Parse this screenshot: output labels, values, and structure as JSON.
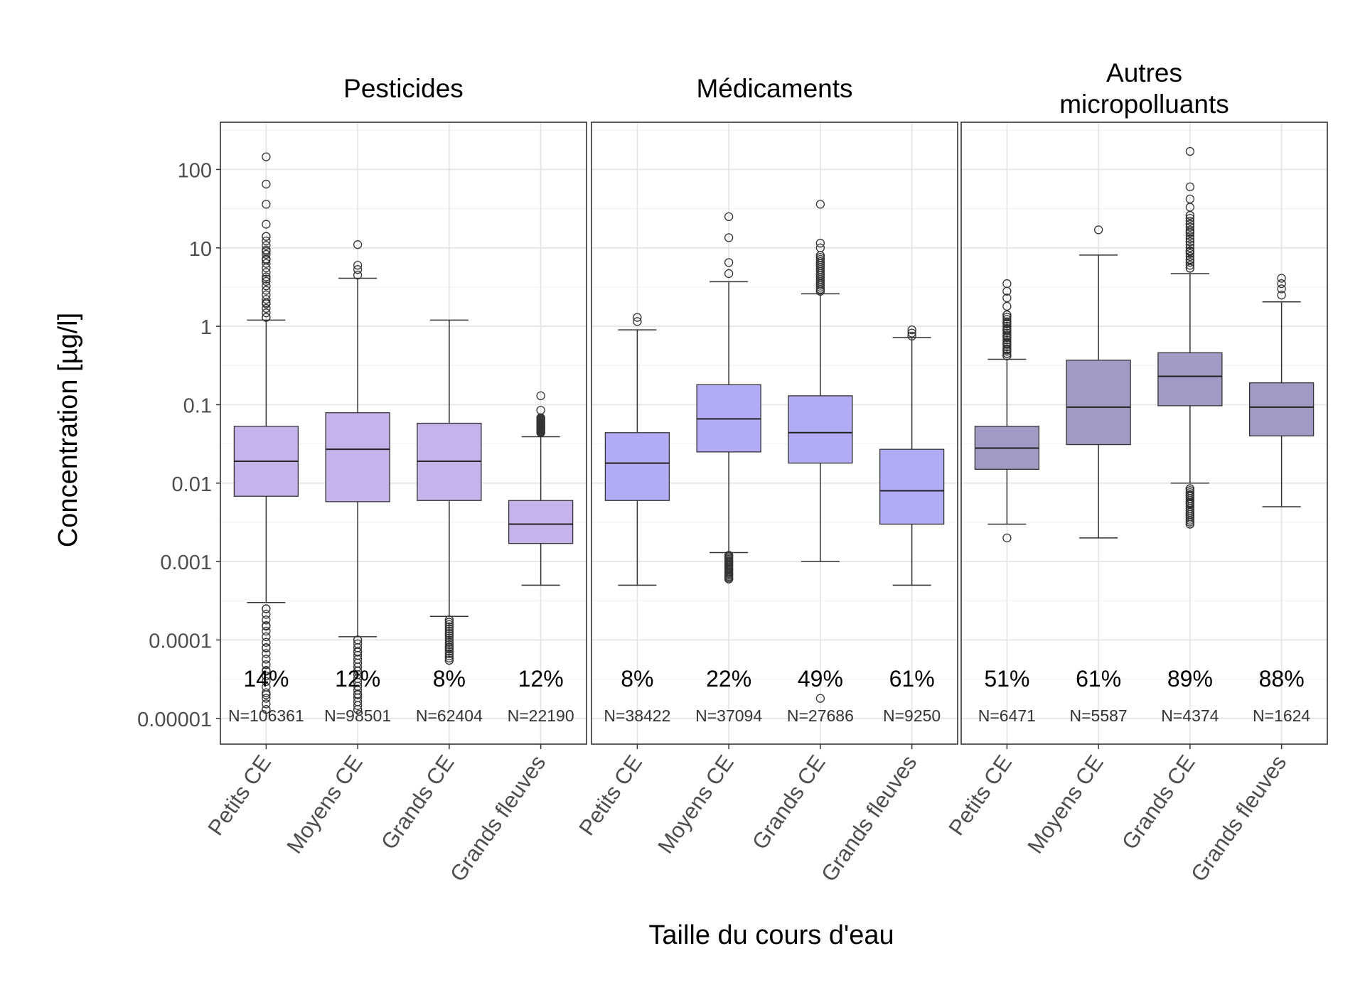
{
  "chart_data": {
    "type": "boxplot",
    "title": "",
    "xlabel": "Taille du cours d'eau",
    "ylabel": "Concentration [µg/l]",
    "yscale": "log10",
    "ylim": [
      5e-06,
      400
    ],
    "yticks": [
      1e-05,
      0.0001,
      0.001,
      0.01,
      0.1,
      1,
      10,
      100
    ],
    "ytick_labels": [
      "0.00001",
      "0.0001",
      "0.001",
      "0.01",
      "0.1",
      "1",
      "10",
      "100"
    ],
    "categories": [
      "Petits CE",
      "Moyens CE",
      "Grands CE",
      "Grands fleuves"
    ],
    "panels": [
      {
        "title_lines": [
          "Pesticides"
        ],
        "color": "#c5b3ec",
        "boxes": [
          {
            "category": "Petits CE",
            "whisker_low": 0.0003,
            "q1": 0.0068,
            "median": 0.019,
            "q3": 0.053,
            "whisker_high": 1.2,
            "outliers_low": [
              1.3e-05,
              2e-05,
              4e-05,
              8e-05,
              0.00015,
              0.00025
            ],
            "outliers_high": [
              1.3,
              2,
              4,
              7,
              9,
              14,
              20,
              36,
              65,
              145
            ],
            "percent": "14%",
            "n": "N=106361"
          },
          {
            "category": "Moyens CE",
            "whisker_low": 0.00011,
            "q1": 0.0058,
            "median": 0.027,
            "q3": 0.079,
            "whisker_high": 4.1,
            "outliers_low": [
              1.3e-05,
              2e-05,
              4e-05,
              7e-05,
              0.0001
            ],
            "outliers_high": [
              4.5,
              5.3,
              6,
              11
            ],
            "percent": "12%",
            "n": "N=98501"
          },
          {
            "category": "Grands CE",
            "whisker_low": 0.0002,
            "q1": 0.006,
            "median": 0.019,
            "q3": 0.058,
            "whisker_high": 1.2,
            "outliers_low": [
              5.5e-05,
              8e-05,
              0.00012,
              0.00018
            ],
            "outliers_high": [],
            "percent": "8%",
            "n": "N=62404"
          },
          {
            "category": "Grands fleuves",
            "whisker_low": 0.0005,
            "q1": 0.0017,
            "median": 0.003,
            "q3": 0.006,
            "whisker_high": 0.039,
            "outliers_low": [],
            "outliers_high": [
              0.044,
              0.05,
              0.058,
              0.068,
              0.085,
              0.13
            ],
            "percent": "12%",
            "n": "N=22190"
          }
        ]
      },
      {
        "title_lines": [
          "Médicaments"
        ],
        "color": "#b2abf5",
        "boxes": [
          {
            "category": "Petits CE",
            "whisker_low": 0.0005,
            "q1": 0.006,
            "median": 0.018,
            "q3": 0.044,
            "whisker_high": 0.9,
            "outliers_low": [],
            "outliers_high": [
              1.15,
              1.3
            ],
            "percent": "8%",
            "n": "N=38422"
          },
          {
            "category": "Moyens CE",
            "whisker_low": 0.0013,
            "q1": 0.025,
            "median": 0.066,
            "q3": 0.18,
            "whisker_high": 3.7,
            "outliers_low": [
              0.0006,
              0.0007,
              0.0008,
              0.0009,
              0.001,
              0.0012
            ],
            "outliers_high": [
              4.7,
              6.5,
              13.5,
              25
            ],
            "percent": "22%",
            "n": "N=37094"
          },
          {
            "category": "Grands CE",
            "whisker_low": 0.001,
            "q1": 0.018,
            "median": 0.044,
            "q3": 0.13,
            "whisker_high": 2.6,
            "outliers_low": [
              1.8e-05
            ],
            "outliers_high": [
              2.8,
              3.5,
              4.5,
              6,
              8,
              10,
              11.5,
              36
            ],
            "percent": "49%",
            "n": "N=27686"
          },
          {
            "category": "Grands fleuves",
            "whisker_low": 0.0005,
            "q1": 0.003,
            "median": 0.008,
            "q3": 0.027,
            "whisker_high": 0.72,
            "outliers_low": [],
            "outliers_high": [
              0.75,
              0.82,
              0.9
            ],
            "percent": "61%",
            "n": "N=9250"
          }
        ]
      },
      {
        "title_lines": [
          "Autres",
          "micropolluants"
        ],
        "color": "#a09ac5",
        "boxes": [
          {
            "category": "Petits CE",
            "whisker_low": 0.003,
            "q1": 0.015,
            "median": 0.028,
            "q3": 0.053,
            "whisker_high": 0.38,
            "outliers_low": [
              0.002
            ],
            "outliers_high": [
              0.42,
              0.5,
              0.6,
              0.75,
              0.9,
              1.1,
              1.4,
              1.8,
              2.3,
              2.8,
              3.5
            ],
            "percent": "51%",
            "n": "N=6471"
          },
          {
            "category": "Moyens CE",
            "whisker_low": 0.002,
            "q1": 0.031,
            "median": 0.093,
            "q3": 0.37,
            "whisker_high": 8.1,
            "outliers_low": [],
            "outliers_high": [
              17
            ],
            "percent": "61%",
            "n": "N=5587"
          },
          {
            "category": "Grands CE",
            "whisker_low": 0.01,
            "q1": 0.097,
            "median": 0.23,
            "q3": 0.46,
            "whisker_high": 4.7,
            "outliers_low": [
              0.003,
              0.004,
              0.0055,
              0.007,
              0.0085
            ],
            "outliers_high": [
              5.5,
              7,
              9,
              12,
              16,
              20,
              26,
              33,
              42,
              60,
              170
            ],
            "percent": "89%",
            "n": "N=4374"
          },
          {
            "category": "Grands fleuves",
            "whisker_low": 0.005,
            "q1": 0.04,
            "median": 0.093,
            "q3": 0.19,
            "whisker_high": 2.05,
            "outliers_low": [],
            "outliers_high": [
              2.5,
              3,
              3.5,
              4.1
            ],
            "percent": "88%",
            "n": "N=1624"
          }
        ]
      }
    ]
  }
}
